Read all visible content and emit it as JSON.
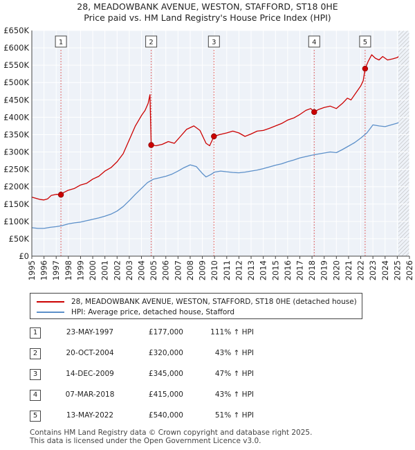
{
  "chart_data": {
    "type": "line",
    "title_line1": "28, MEADOWBANK AVENUE, WESTON, STAFFORD, ST18 0HE",
    "title_line2": "Price paid vs. HM Land Registry's House Price Index (HPI)",
    "xlim": [
      1995,
      2026
    ],
    "ylim": [
      0,
      650000
    ],
    "x_ticks": [
      "1995",
      "1996",
      "1997",
      "1998",
      "1999",
      "2000",
      "2001",
      "2002",
      "2003",
      "2004",
      "2005",
      "2006",
      "2007",
      "2008",
      "2009",
      "2010",
      "2011",
      "2012",
      "2013",
      "2014",
      "2015",
      "2016",
      "2017",
      "2018",
      "2019",
      "2020",
      "2021",
      "2022",
      "2023",
      "2024",
      "2025",
      "2026"
    ],
    "y_ticks": [
      {
        "value": 0,
        "label": "£0"
      },
      {
        "value": 50000,
        "label": "£50K"
      },
      {
        "value": 100000,
        "label": "£100K"
      },
      {
        "value": 150000,
        "label": "£150K"
      },
      {
        "value": 200000,
        "label": "£200K"
      },
      {
        "value": 250000,
        "label": "£250K"
      },
      {
        "value": 300000,
        "label": "£300K"
      },
      {
        "value": 350000,
        "label": "£350K"
      },
      {
        "value": 400000,
        "label": "£400K"
      },
      {
        "value": 450000,
        "label": "£450K"
      },
      {
        "value": 500000,
        "label": "£500K"
      },
      {
        "value": 550000,
        "label": "£550K"
      },
      {
        "value": 600000,
        "label": "£600K"
      },
      {
        "value": 650000,
        "label": "£650K"
      }
    ],
    "grid": true,
    "hatched_region_from": 2025.1,
    "series": [
      {
        "name": "28, MEADOWBANK AVENUE, WESTON, STAFFORD, ST18 0HE (detached house)",
        "color": "#cc0000",
        "points": [
          [
            1995.0,
            170000
          ],
          [
            1995.3,
            167000
          ],
          [
            1995.7,
            163000
          ],
          [
            1996.0,
            162000
          ],
          [
            1996.3,
            165000
          ],
          [
            1996.6,
            175000
          ],
          [
            1997.0,
            178000
          ],
          [
            1997.39,
            177000
          ],
          [
            1997.6,
            183000
          ],
          [
            1998.0,
            190000
          ],
          [
            1998.5,
            195000
          ],
          [
            1999.0,
            205000
          ],
          [
            1999.5,
            210000
          ],
          [
            2000.0,
            222000
          ],
          [
            2000.5,
            230000
          ],
          [
            2001.0,
            245000
          ],
          [
            2001.5,
            255000
          ],
          [
            2002.0,
            272000
          ],
          [
            2002.5,
            295000
          ],
          [
            2003.0,
            335000
          ],
          [
            2003.5,
            375000
          ],
          [
            2004.0,
            405000
          ],
          [
            2004.3,
            420000
          ],
          [
            2004.55,
            440000
          ],
          [
            2004.7,
            465000
          ],
          [
            2004.8,
            320000
          ],
          [
            2005.2,
            318000
          ],
          [
            2005.7,
            322000
          ],
          [
            2006.2,
            330000
          ],
          [
            2006.7,
            325000
          ],
          [
            2007.2,
            345000
          ],
          [
            2007.7,
            365000
          ],
          [
            2008.3,
            375000
          ],
          [
            2008.8,
            362000
          ],
          [
            2009.3,
            325000
          ],
          [
            2009.6,
            318000
          ],
          [
            2009.95,
            345000
          ],
          [
            2010.4,
            350000
          ],
          [
            2011.0,
            355000
          ],
          [
            2011.5,
            360000
          ],
          [
            2012.0,
            355000
          ],
          [
            2012.5,
            345000
          ],
          [
            2013.0,
            352000
          ],
          [
            2013.5,
            360000
          ],
          [
            2014.0,
            362000
          ],
          [
            2014.5,
            368000
          ],
          [
            2015.0,
            375000
          ],
          [
            2015.5,
            382000
          ],
          [
            2016.0,
            392000
          ],
          [
            2016.5,
            398000
          ],
          [
            2017.0,
            408000
          ],
          [
            2017.5,
            420000
          ],
          [
            2017.9,
            425000
          ],
          [
            2018.18,
            415000
          ],
          [
            2018.5,
            422000
          ],
          [
            2019.0,
            428000
          ],
          [
            2019.5,
            432000
          ],
          [
            2020.0,
            425000
          ],
          [
            2020.5,
            440000
          ],
          [
            2020.9,
            455000
          ],
          [
            2021.2,
            450000
          ],
          [
            2021.6,
            470000
          ],
          [
            2022.0,
            490000
          ],
          [
            2022.2,
            505000
          ],
          [
            2022.36,
            540000
          ],
          [
            2022.6,
            560000
          ],
          [
            2022.9,
            580000
          ],
          [
            2023.2,
            570000
          ],
          [
            2023.5,
            565000
          ],
          [
            2023.8,
            575000
          ],
          [
            2024.2,
            565000
          ],
          [
            2024.6,
            568000
          ],
          [
            2025.0,
            572000
          ],
          [
            2025.1,
            575000
          ]
        ]
      },
      {
        "name": "HPI: Average price, detached house, Stafford",
        "color": "#5b8fc9",
        "points": [
          [
            1995.0,
            82000
          ],
          [
            1995.5,
            80000
          ],
          [
            1996.0,
            80000
          ],
          [
            1996.5,
            83000
          ],
          [
            1997.0,
            85000
          ],
          [
            1997.5,
            88000
          ],
          [
            1998.0,
            93000
          ],
          [
            1998.5,
            96000
          ],
          [
            1999.0,
            98000
          ],
          [
            1999.5,
            102000
          ],
          [
            2000.0,
            106000
          ],
          [
            2000.5,
            110000
          ],
          [
            2001.0,
            115000
          ],
          [
            2001.5,
            121000
          ],
          [
            2002.0,
            130000
          ],
          [
            2002.5,
            143000
          ],
          [
            2003.0,
            160000
          ],
          [
            2003.5,
            178000
          ],
          [
            2004.0,
            195000
          ],
          [
            2004.5,
            212000
          ],
          [
            2005.0,
            222000
          ],
          [
            2005.5,
            226000
          ],
          [
            2006.0,
            230000
          ],
          [
            2006.5,
            236000
          ],
          [
            2007.0,
            245000
          ],
          [
            2007.5,
            255000
          ],
          [
            2008.0,
            263000
          ],
          [
            2008.5,
            258000
          ],
          [
            2009.0,
            238000
          ],
          [
            2009.3,
            228000
          ],
          [
            2009.7,
            235000
          ],
          [
            2010.0,
            242000
          ],
          [
            2010.5,
            245000
          ],
          [
            2011.0,
            243000
          ],
          [
            2011.5,
            241000
          ],
          [
            2012.0,
            240000
          ],
          [
            2012.5,
            242000
          ],
          [
            2013.0,
            245000
          ],
          [
            2013.5,
            248000
          ],
          [
            2014.0,
            252000
          ],
          [
            2014.5,
            257000
          ],
          [
            2015.0,
            262000
          ],
          [
            2015.5,
            266000
          ],
          [
            2016.0,
            272000
          ],
          [
            2016.5,
            277000
          ],
          [
            2017.0,
            283000
          ],
          [
            2017.5,
            287000
          ],
          [
            2018.0,
            291000
          ],
          [
            2018.5,
            294000
          ],
          [
            2019.0,
            297000
          ],
          [
            2019.5,
            300000
          ],
          [
            2020.0,
            298000
          ],
          [
            2020.5,
            307000
          ],
          [
            2021.0,
            317000
          ],
          [
            2021.5,
            327000
          ],
          [
            2022.0,
            340000
          ],
          [
            2022.5,
            355000
          ],
          [
            2023.0,
            378000
          ],
          [
            2023.5,
            375000
          ],
          [
            2024.0,
            373000
          ],
          [
            2024.5,
            378000
          ],
          [
            2025.0,
            383000
          ],
          [
            2025.1,
            385000
          ]
        ]
      }
    ],
    "sales": [
      {
        "n": "1",
        "x": 1997.39,
        "y": 177000
      },
      {
        "n": "2",
        "x": 2004.8,
        "y": 320000
      },
      {
        "n": "3",
        "x": 2009.95,
        "y": 345000
      },
      {
        "n": "4",
        "x": 2018.18,
        "y": 415000
      },
      {
        "n": "5",
        "x": 2022.36,
        "y": 540000
      }
    ]
  },
  "legend": {
    "property": "28, MEADOWBANK AVENUE, WESTON, STAFFORD, ST18 0HE (detached house)",
    "hpi": "HPI: Average price, detached house, Stafford",
    "property_color": "#cc0000",
    "hpi_color": "#5b8fc9"
  },
  "sales_table": [
    {
      "n": "1",
      "date": "23-MAY-1997",
      "price": "£177,000",
      "hpi": "111% ↑ HPI"
    },
    {
      "n": "2",
      "date": "20-OCT-2004",
      "price": "£320,000",
      "hpi": "43% ↑ HPI"
    },
    {
      "n": "3",
      "date": "14-DEC-2009",
      "price": "£345,000",
      "hpi": "47% ↑ HPI"
    },
    {
      "n": "4",
      "date": "07-MAR-2018",
      "price": "£415,000",
      "hpi": "43% ↑ HPI"
    },
    {
      "n": "5",
      "date": "13-MAY-2022",
      "price": "£540,000",
      "hpi": "51% ↑ HPI"
    }
  ],
  "footer": {
    "line1": "Contains HM Land Registry data © Crown copyright and database right 2025.",
    "line2": "This data is licensed under the Open Government Licence v3.0."
  }
}
